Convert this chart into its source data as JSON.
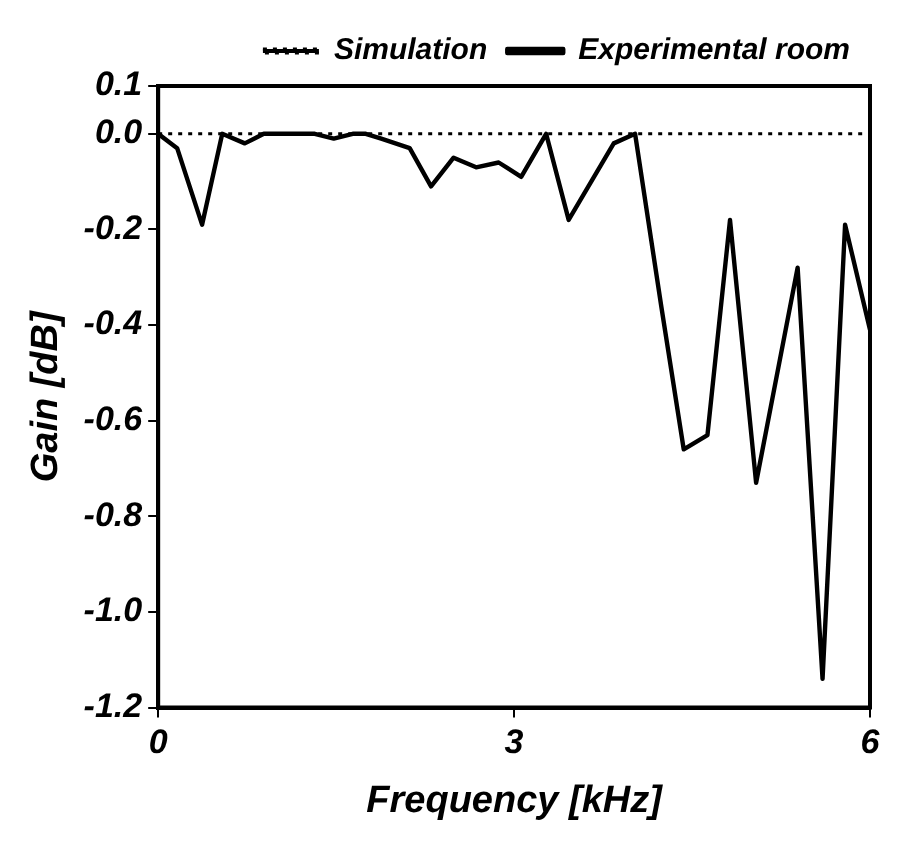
{
  "chart_data": {
    "type": "line",
    "xlabel": "Frequency [kHz]",
    "ylabel": "Gain [dB]",
    "xlim": [
      0,
      6
    ],
    "xticks": [
      0,
      3,
      6
    ],
    "ylim": [
      -1.2,
      0.1
    ],
    "yticks": [
      {
        "value": -1.2,
        "label": "-1.2"
      },
      {
        "value": -1.0,
        "label": "-1.0"
      },
      -0.8,
      -0.6,
      -0.4,
      -0.2,
      {
        "value": 0,
        "label": "0.0"
      },
      0.1
    ],
    "grid": false,
    "legend": "top right",
    "marker": "none",
    "series": [
      {
        "name": "Simulation",
        "color": "#000000",
        "line_style": "dotted",
        "x": [
          0,
          6
        ],
        "values": [
          0,
          0
        ]
      },
      {
        "name": "Experimental room",
        "color": "#000000",
        "line_style": "solid",
        "x": [
          0,
          0.16,
          0.37,
          0.54,
          0.73,
          0.89,
          1.32,
          1.48,
          1.64,
          1.75,
          1.88,
          2.12,
          2.3,
          2.49,
          2.68,
          2.87,
          3.06,
          3.27,
          3.46,
          3.84,
          4.02,
          4.24,
          4.43,
          4.63,
          4.82,
          5.04,
          5.39,
          5.6,
          5.79,
          6.0
        ],
        "values": [
          0,
          -0.03,
          -0.19,
          0,
          -0.02,
          0,
          0,
          -0.01,
          0,
          0,
          -0.01,
          -0.03,
          -0.11,
          -0.05,
          -0.07,
          -0.06,
          -0.09,
          0,
          -0.18,
          -0.02,
          0,
          -0.36,
          -0.66,
          -0.63,
          -0.18,
          -0.73,
          -0.28,
          -1.14,
          -0.19,
          -0.41
        ]
      }
    ]
  }
}
